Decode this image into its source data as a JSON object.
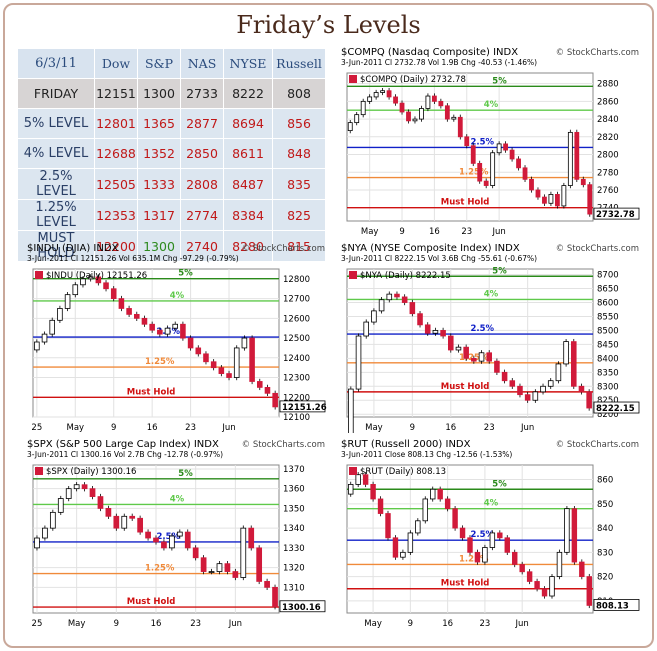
{
  "page_title": "Friday’s Levels",
  "table": {
    "date": "6/3/11",
    "columns": [
      "Dow",
      "S&P",
      "NAS",
      "NYSE",
      "Russell"
    ],
    "rows": [
      {
        "label": "FRIDAY",
        "values": [
          "12151",
          "1300",
          "2733",
          "8222",
          "808"
        ]
      },
      {
        "label": "5% LEVEL",
        "values": [
          "12801",
          "1365",
          "2877",
          "8694",
          "856"
        ]
      },
      {
        "label": "4% LEVEL",
        "values": [
          "12688",
          "1352",
          "2850",
          "8611",
          "848"
        ]
      },
      {
        "label": "2.5% LEVEL",
        "values": [
          "12505",
          "1333",
          "2808",
          "8487",
          "835"
        ]
      },
      {
        "label": "1.25% LEVEL",
        "values": [
          "12353",
          "1317",
          "2774",
          "8384",
          "825"
        ]
      },
      {
        "label": "MUST HOLD",
        "values": [
          "12200",
          "1300",
          "2740",
          "8280",
          "815"
        ]
      }
    ]
  },
  "chart_data": [
    {
      "id": "compq",
      "type": "candlestick",
      "symbol": "$COMPQ",
      "name": "(Nasdaq Composite)",
      "exchange": "INDX",
      "brand": "© StockCharts.com",
      "info_line": "3-Jun-2011   Cl 2732.78  Vol 1.9B  Chg -40.53 (-1.46%)",
      "legend": "$COMPQ (Daily) 2732.78",
      "last_label": "2732.78",
      "ylim": [
        2725,
        2892
      ],
      "yticks": [
        2740,
        2760,
        2780,
        2800,
        2820,
        2840,
        2860,
        2880
      ],
      "xticks": [
        "May",
        "9",
        "16",
        "23",
        "Jun"
      ],
      "xtick_idx": [
        3,
        8,
        13,
        18,
        23
      ],
      "levels": [
        {
          "label": "5%",
          "value": 2877,
          "color": "#2a8a1a"
        },
        {
          "label": "4%",
          "value": 2850,
          "color": "#5fc94a"
        },
        {
          "label": "2.5%",
          "value": 2808,
          "color": "#1020c8"
        },
        {
          "label": "1.25%",
          "value": 2774,
          "color": "#f08a3a"
        },
        {
          "label": "Must Hold",
          "value": 2740,
          "color": "#d01010"
        }
      ],
      "close": [
        2836,
        2845,
        2860,
        2865,
        2870,
        2872,
        2865,
        2858,
        2848,
        2838,
        2840,
        2852,
        2866,
        2860,
        2855,
        2840,
        2842,
        2820,
        2810,
        2790,
        2770,
        2765,
        2802,
        2812,
        2805,
        2795,
        2785,
        2772,
        2760,
        2752,
        2745,
        2755,
        2742,
        2765,
        2825,
        2772,
        2766,
        2732.78
      ]
    },
    {
      "id": "indu",
      "type": "candlestick",
      "symbol": "$INDU",
      "name": "(DJIA)",
      "exchange": "INDX",
      "brand": "© StockCharts.com",
      "info_line": "3-Jun-2011   Cl 12151.26  Vol 635.1M  Chg -97.29 (-0.79%)",
      "legend": "$INDU (Daily) 12151.26",
      "last_label": "12151.26",
      "ylim": [
        12100,
        12850
      ],
      "yticks": [
        12100,
        12200,
        12300,
        12400,
        12500,
        12600,
        12700,
        12800
      ],
      "xticks": [
        "25",
        "May",
        "9",
        "16",
        "23",
        "Jun"
      ],
      "xtick_idx": [
        0,
        5,
        10,
        15,
        20,
        25
      ],
      "levels": [
        {
          "label": "5%",
          "value": 12801,
          "color": "#2a8a1a"
        },
        {
          "label": "4%",
          "value": 12688,
          "color": "#5fc94a"
        },
        {
          "label": "2.5%",
          "value": 12505,
          "color": "#1020c8"
        },
        {
          "label": "1.25%",
          "value": 12353,
          "color": "#f08a3a"
        },
        {
          "label": "Must Hold",
          "value": 12200,
          "color": "#d01010"
        }
      ],
      "close": [
        12480,
        12520,
        12590,
        12650,
        12720,
        12770,
        12800,
        12810,
        12780,
        12750,
        12700,
        12650,
        12620,
        12600,
        12570,
        12540,
        12520,
        12550,
        12570,
        12500,
        12450,
        12420,
        12380,
        12350,
        12320,
        12300,
        12450,
        12500,
        12280,
        12250,
        12220,
        12151.26
      ]
    },
    {
      "id": "nya",
      "type": "candlestick",
      "symbol": "$NYA",
      "name": "(NYSE Composite Index)",
      "exchange": "INDX",
      "brand": "© StockCharts.com",
      "info_line": "3-Jun-2011   Cl 8222.15  Vol 3.6B  Chg -55.61 (-0.67%)",
      "legend": "$NYA (Daily) 8222.15",
      "last_label": "8222.15",
      "ylim": [
        8190,
        8720
      ],
      "yticks": [
        8200,
        8250,
        8300,
        8350,
        8400,
        8450,
        8500,
        8550,
        8600,
        8650,
        8700
      ],
      "xticks": [
        "May",
        "9",
        "16",
        "23",
        "Jun"
      ],
      "xtick_idx": [
        3,
        8,
        13,
        18,
        23
      ],
      "levels": [
        {
          "label": "5%",
          "value": 8694,
          "color": "#2a8a1a"
        },
        {
          "label": "4%",
          "value": 8611,
          "color": "#5fc94a"
        },
        {
          "label": "2.5%",
          "value": 8487,
          "color": "#1020c8"
        },
        {
          "label": "1.25%",
          "value": 8384,
          "color": "#f08a3a"
        },
        {
          "label": "Must Hold",
          "value": 8280,
          "color": "#d01010"
        }
      ],
      "close": [
        8290,
        8480,
        8530,
        8570,
        8610,
        8630,
        8620,
        8600,
        8560,
        8520,
        8490,
        8500,
        8480,
        8430,
        8440,
        8400,
        8390,
        8420,
        8390,
        8350,
        8320,
        8300,
        8270,
        8250,
        8280,
        8300,
        8320,
        8380,
        8460,
        8300,
        8280,
        8222.15
      ]
    },
    {
      "id": "spx",
      "type": "candlestick",
      "symbol": "$SPX",
      "name": "(S&P 500 Large Cap Index)",
      "exchange": "INDX",
      "brand": "© StockCharts.com",
      "info_line": "3-Jun-2011   Cl 1300.16  Vol 2.7B  Chg -12.78 (-0.97%)",
      "legend": "$SPX (Daily) 1300.16",
      "last_label": "1300.16",
      "ylim": [
        1297,
        1372
      ],
      "yticks": [
        1310,
        1320,
        1330,
        1340,
        1350,
        1360,
        1370
      ],
      "xticks": [
        "25",
        "May",
        "9",
        "16",
        "23",
        "Jun"
      ],
      "xtick_idx": [
        0,
        5,
        10,
        15,
        20,
        25
      ],
      "levels": [
        {
          "label": "5%",
          "value": 1365,
          "color": "#2a8a1a"
        },
        {
          "label": "4%",
          "value": 1352,
          "color": "#5fc94a"
        },
        {
          "label": "2.5%",
          "value": 1333,
          "color": "#1020c8"
        },
        {
          "label": "1.25%",
          "value": 1317,
          "color": "#f08a3a"
        },
        {
          "label": "Must Hold",
          "value": 1300,
          "color": "#d01010"
        }
      ],
      "close": [
        1335,
        1340,
        1348,
        1355,
        1360,
        1362,
        1360,
        1356,
        1350,
        1346,
        1340,
        1346,
        1345,
        1338,
        1335,
        1333,
        1330,
        1336,
        1338,
        1330,
        1325,
        1318,
        1318,
        1322,
        1318,
        1315,
        1340,
        1330,
        1313,
        1310,
        1300.16
      ]
    },
    {
      "id": "rut",
      "type": "candlestick",
      "symbol": "$RUT",
      "name": "(Russell 2000)",
      "exchange": "INDX",
      "brand": "© StockCharts.com",
      "info_line": "3-Jun-2011   Close 808.13  Chg -12.56 (-1.53%)",
      "legend": "$RUT (Daily) 808.13",
      "last_label": "808.13",
      "ylim": [
        805,
        866
      ],
      "yticks": [
        810,
        820,
        830,
        840,
        850,
        860
      ],
      "xticks": [
        "May",
        "9",
        "16",
        "23",
        "Jun"
      ],
      "xtick_idx": [
        3,
        8,
        13,
        18,
        23
      ],
      "levels": [
        {
          "label": "5%",
          "value": 856,
          "color": "#2a8a1a"
        },
        {
          "label": "4%",
          "value": 848,
          "color": "#5fc94a"
        },
        {
          "label": "2.5%",
          "value": 835,
          "color": "#1020c8"
        },
        {
          "label": "1.25%",
          "value": 825,
          "color": "#f08a3a"
        },
        {
          "label": "Must Hold",
          "value": 815,
          "color": "#d01010"
        }
      ],
      "close": [
        858,
        862,
        858,
        852,
        846,
        836,
        828,
        830,
        838,
        843,
        852,
        856,
        852,
        848,
        840,
        836,
        830,
        826,
        832,
        838,
        836,
        830,
        825,
        822,
        818,
        815,
        812,
        820,
        830,
        848,
        826,
        820,
        808.13
      ]
    }
  ]
}
